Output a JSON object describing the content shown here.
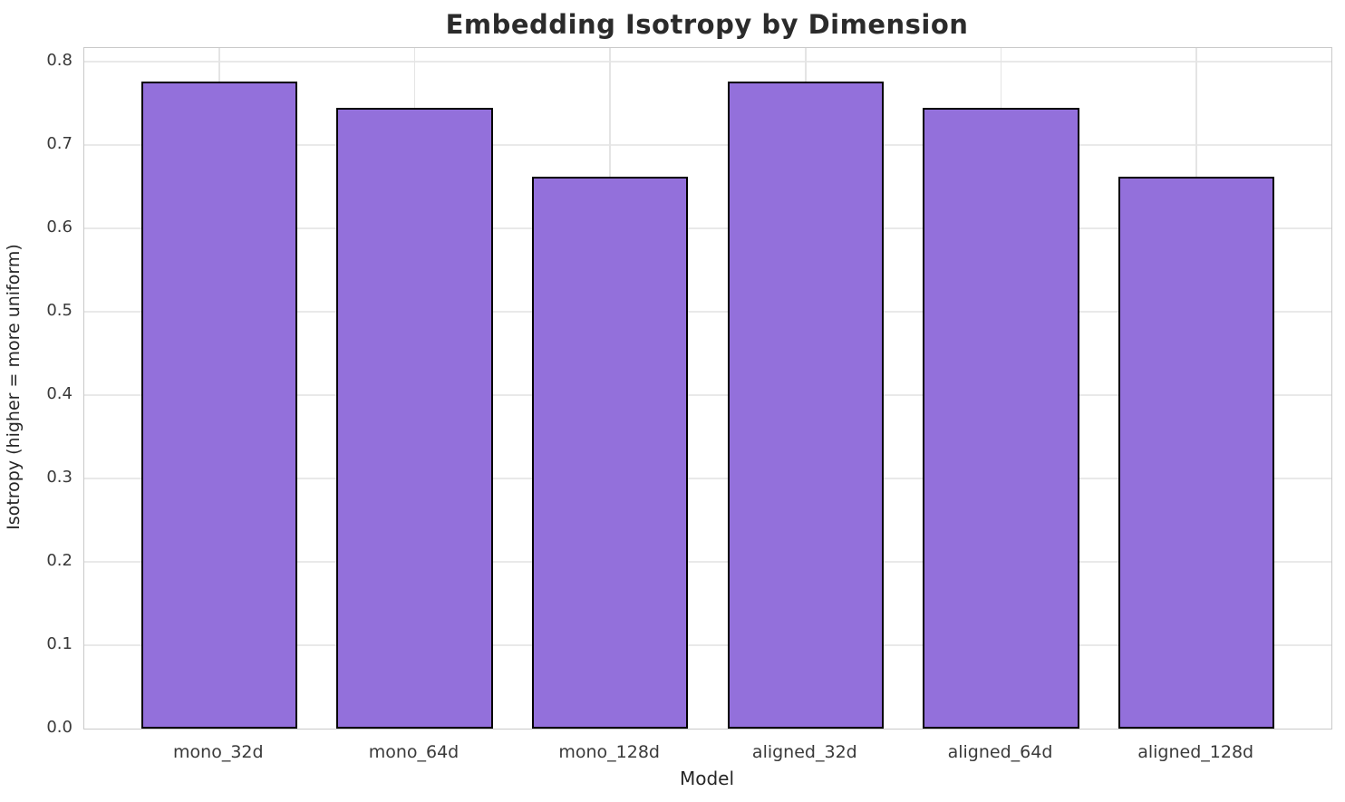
{
  "chart_data": {
    "type": "bar",
    "title": "Embedding Isotropy by Dimension",
    "categories": [
      "mono_32d",
      "mono_64d",
      "mono_128d",
      "aligned_32d",
      "aligned_64d",
      "aligned_128d"
    ],
    "values": [
      0.776,
      0.745,
      0.662,
      0.776,
      0.745,
      0.662
    ],
    "xlabel": "Model",
    "ylabel": "Isotropy (higher = more uniform)",
    "ytick_labels": [
      "0.0",
      "0.1",
      "0.2",
      "0.3",
      "0.4",
      "0.5",
      "0.6",
      "0.7",
      "0.8"
    ],
    "ylim": [
      0,
      0.8163
    ],
    "xlim": [
      -0.69,
      5.69
    ],
    "bar_width": 0.8,
    "grid": true,
    "legend": "none",
    "colors": {
      "bar_fill": "#9370DB",
      "bar_edge": "#000000",
      "grid_h": "#e9e9e9",
      "grid_v": "#e4e4e4",
      "spine": "#c9c9c9",
      "text": "#262626"
    }
  }
}
